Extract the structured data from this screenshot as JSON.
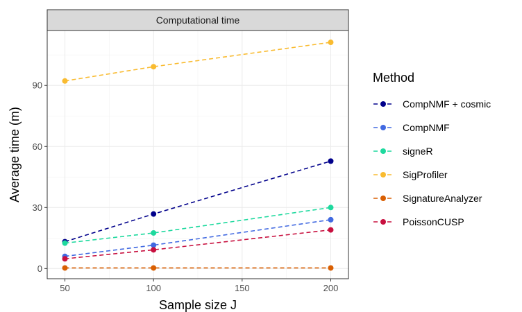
{
  "chart_data": {
    "type": "line",
    "title": "Computational time",
    "xlabel": "Sample size J",
    "ylabel": "Average time (m)",
    "x": [
      50,
      100,
      200
    ],
    "xticks": [
      50,
      100,
      150,
      200
    ],
    "yticks": [
      0,
      30,
      60,
      90
    ],
    "xlim": [
      40,
      210
    ],
    "ylim": [
      -5,
      117
    ],
    "grid": true,
    "line_style": "dashed",
    "legend": {
      "title": "Method",
      "placement": "right"
    },
    "series": [
      {
        "name": "CompNMF + cosmic",
        "color": "#00008B",
        "values": [
          13.2,
          26.8,
          52.8
        ]
      },
      {
        "name": "CompNMF",
        "color": "#4169E1",
        "values": [
          6.0,
          11.5,
          24.0
        ]
      },
      {
        "name": "signeR",
        "color": "#1ED99E",
        "values": [
          12.5,
          17.5,
          30.0
        ]
      },
      {
        "name": "SigProfiler",
        "color": "#F9BB30",
        "values": [
          92.2,
          99.2,
          111.2
        ]
      },
      {
        "name": "SignatureAnalyzer",
        "color": "#D95F02",
        "values": [
          0.3,
          0.3,
          0.3
        ]
      },
      {
        "name": "PoissonCUSP",
        "color": "#C8103F",
        "values": [
          4.8,
          9.2,
          19.0
        ]
      }
    ]
  }
}
